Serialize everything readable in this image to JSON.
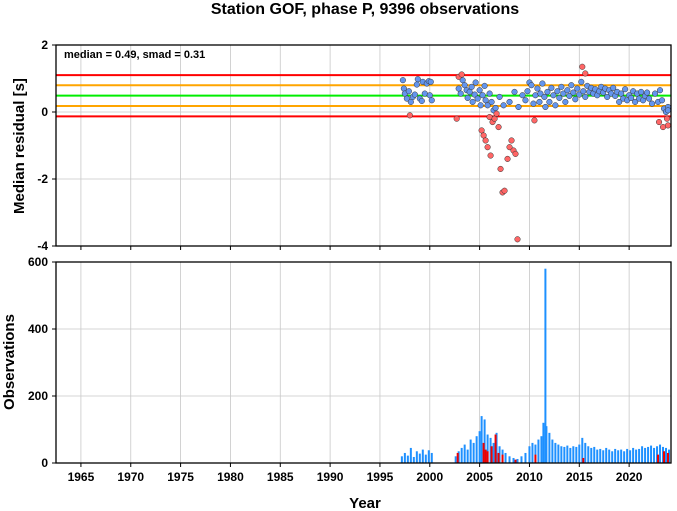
{
  "chart_data": [
    {
      "type": "scatter",
      "title": "Station GOF, phase P, 9396 observations",
      "ylabel": "Median residual [s]",
      "annotation": "median = 0.49, smad = 0.31",
      "xlim": [
        1962.5,
        2024.2
      ],
      "ylim": [
        -4,
        2
      ],
      "yticks": [
        "2",
        "0",
        "-2",
        "-4"
      ],
      "grid": true,
      "reference_lines": [
        {
          "y": 1.1,
          "color": "#ff0000"
        },
        {
          "y": 0.8,
          "color": "#ffa500"
        },
        {
          "y": 0.49,
          "color": "#00ee00"
        },
        {
          "y": 0.18,
          "color": "#ffa500"
        },
        {
          "y": -0.13,
          "color": "#ff0000"
        }
      ],
      "colors": {
        "in_band": "#6495ed",
        "outlier": "#ff6666"
      },
      "series": [
        {
          "color": "#6495ed",
          "points": [
            [
              1997.3,
              0.95
            ],
            [
              1997.4,
              0.7
            ],
            [
              1997.5,
              0.55
            ],
            [
              1997.7,
              0.4
            ],
            [
              1997.9,
              0.62
            ],
            [
              1998.1,
              0.3
            ],
            [
              1998.3,
              0.45
            ],
            [
              1998.5,
              0.52
            ],
            [
              1998.7,
              0.82
            ],
            [
              1998.8,
              0.98
            ],
            [
              1999.0,
              0.4
            ],
            [
              1999.2,
              0.33
            ],
            [
              1999.3,
              0.9
            ],
            [
              1999.5,
              0.55
            ],
            [
              1999.7,
              0.85
            ],
            [
              1999.9,
              0.92
            ],
            [
              2000.0,
              0.5
            ],
            [
              2000.1,
              0.9
            ],
            [
              2000.2,
              0.35
            ],
            [
              2002.9,
              0.7
            ],
            [
              2003.1,
              0.55
            ],
            [
              2003.3,
              0.95
            ],
            [
              2003.5,
              0.8
            ],
            [
              2003.7,
              0.65
            ],
            [
              2003.8,
              0.42
            ],
            [
              2004.0,
              0.6
            ],
            [
              2004.2,
              0.75
            ],
            [
              2004.3,
              0.3
            ],
            [
              2004.5,
              0.52
            ],
            [
              2004.6,
              0.88
            ],
            [
              2004.8,
              0.4
            ],
            [
              2005.0,
              0.65
            ],
            [
              2005.1,
              0.2
            ],
            [
              2005.3,
              0.5
            ],
            [
              2005.5,
              0.78
            ],
            [
              2005.6,
              0.35
            ],
            [
              2005.8,
              0.2
            ],
            [
              2006.0,
              0.55
            ],
            [
              2006.2,
              0.3
            ],
            [
              2006.4,
              0.05
            ],
            [
              2006.6,
              0.12
            ],
            [
              2007.0,
              0.45
            ],
            [
              2007.4,
              0.2
            ],
            [
              2008.0,
              0.3
            ],
            [
              2008.5,
              0.6
            ],
            [
              2008.9,
              0.15
            ],
            [
              2009.3,
              0.5
            ],
            [
              2009.6,
              0.35
            ],
            [
              2009.8,
              0.62
            ],
            [
              2010.0,
              0.88
            ],
            [
              2010.2,
              0.8
            ],
            [
              2010.4,
              0.25
            ],
            [
              2010.6,
              0.5
            ],
            [
              2010.8,
              0.7
            ],
            [
              2011.0,
              0.3
            ],
            [
              2011.1,
              0.55
            ],
            [
              2011.3,
              0.85
            ],
            [
              2011.5,
              0.45
            ],
            [
              2011.6,
              0.15
            ],
            [
              2011.8,
              0.6
            ],
            [
              2012.0,
              0.3
            ],
            [
              2012.2,
              0.72
            ],
            [
              2012.4,
              0.5
            ],
            [
              2012.6,
              0.2
            ],
            [
              2012.8,
              0.62
            ],
            [
              2013.0,
              0.42
            ],
            [
              2013.2,
              0.75
            ],
            [
              2013.4,
              0.55
            ],
            [
              2013.6,
              0.3
            ],
            [
              2013.8,
              0.65
            ],
            [
              2014.0,
              0.48
            ],
            [
              2014.2,
              0.8
            ],
            [
              2014.4,
              0.58
            ],
            [
              2014.6,
              0.38
            ],
            [
              2014.8,
              0.7
            ],
            [
              2015.0,
              0.52
            ],
            [
              2015.2,
              0.9
            ],
            [
              2015.4,
              0.62
            ],
            [
              2015.6,
              0.45
            ],
            [
              2015.8,
              0.78
            ],
            [
              2016.0,
              0.6
            ],
            [
              2016.2,
              0.72
            ],
            [
              2016.4,
              0.55
            ],
            [
              2016.6,
              0.68
            ],
            [
              2016.8,
              0.5
            ],
            [
              2017.0,
              0.62
            ],
            [
              2017.2,
              0.75
            ],
            [
              2017.4,
              0.58
            ],
            [
              2017.6,
              0.7
            ],
            [
              2017.8,
              0.45
            ],
            [
              2018.0,
              0.65
            ],
            [
              2018.2,
              0.55
            ],
            [
              2018.4,
              0.72
            ],
            [
              2018.6,
              0.48
            ],
            [
              2018.8,
              0.6
            ],
            [
              2019.0,
              0.3
            ],
            [
              2019.2,
              0.55
            ],
            [
              2019.4,
              0.4
            ],
            [
              2019.6,
              0.68
            ],
            [
              2019.8,
              0.35
            ],
            [
              2020.0,
              0.5
            ],
            [
              2020.2,
              0.42
            ],
            [
              2020.4,
              0.62
            ],
            [
              2020.6,
              0.3
            ],
            [
              2020.8,
              0.55
            ],
            [
              2021.0,
              0.4
            ],
            [
              2021.2,
              0.6
            ],
            [
              2021.4,
              0.35
            ],
            [
              2021.6,
              0.48
            ],
            [
              2021.8,
              0.58
            ],
            [
              2022.0,
              0.4
            ],
            [
              2022.3,
              0.25
            ],
            [
              2022.6,
              0.55
            ],
            [
              2022.9,
              0.3
            ],
            [
              2023.1,
              0.65
            ],
            [
              2023.3,
              0.35
            ],
            [
              2023.5,
              0.1
            ],
            [
              2023.7,
              0.0
            ],
            [
              2023.9,
              0.15
            ],
            [
              2024.0,
              0.05
            ]
          ]
        },
        {
          "color": "#ff6666",
          "points": [
            [
              1998.0,
              -0.1
            ],
            [
              2002.7,
              -0.2
            ],
            [
              2002.9,
              1.05
            ],
            [
              2003.2,
              1.12
            ],
            [
              2005.2,
              -0.55
            ],
            [
              2005.4,
              -0.7
            ],
            [
              2005.6,
              -0.85
            ],
            [
              2005.8,
              -1.05
            ],
            [
              2006.0,
              -0.15
            ],
            [
              2006.1,
              -1.3
            ],
            [
              2006.3,
              -0.3
            ],
            [
              2006.5,
              -0.2
            ],
            [
              2006.7,
              -0.05
            ],
            [
              2006.9,
              -0.45
            ],
            [
              2007.1,
              -1.7
            ],
            [
              2007.3,
              -2.4
            ],
            [
              2007.5,
              -2.35
            ],
            [
              2007.8,
              -1.4
            ],
            [
              2008.0,
              -1.05
            ],
            [
              2008.2,
              -0.85
            ],
            [
              2008.4,
              -1.15
            ],
            [
              2008.6,
              -1.25
            ],
            [
              2008.8,
              -3.8
            ],
            [
              2010.5,
              -0.25
            ],
            [
              2015.3,
              1.35
            ],
            [
              2015.6,
              1.15
            ],
            [
              2023.0,
              -0.3
            ],
            [
              2023.4,
              -0.45
            ],
            [
              2023.8,
              -0.2
            ],
            [
              2024.1,
              -0.4
            ]
          ]
        }
      ]
    },
    {
      "type": "bar",
      "ylabel": "Observations",
      "xlabel": "Year",
      "xlim": [
        1962.5,
        2024.2
      ],
      "ylim": [
        0,
        600
      ],
      "yticks": [
        "600",
        "400",
        "200",
        "0"
      ],
      "xticks": [
        "1965",
        "1970",
        "1975",
        "1980",
        "1985",
        "1990",
        "1995",
        "2000",
        "2005",
        "2010",
        "2015",
        "2020"
      ],
      "grid": true,
      "colors": {
        "in_band": "#1e90ff",
        "outlier": "#ee0000"
      },
      "series": [
        {
          "color": "#1e90ff",
          "points": [
            [
              1997.2,
              20
            ],
            [
              1997.5,
              30
            ],
            [
              1997.8,
              22
            ],
            [
              1998.1,
              45
            ],
            [
              1998.4,
              18
            ],
            [
              1998.7,
              35
            ],
            [
              1999.0,
              28
            ],
            [
              1999.3,
              40
            ],
            [
              1999.6,
              25
            ],
            [
              1999.9,
              38
            ],
            [
              2000.2,
              30
            ],
            [
              2002.6,
              20
            ],
            [
              2002.9,
              35
            ],
            [
              2003.2,
              45
            ],
            [
              2003.5,
              55
            ],
            [
              2003.8,
              40
            ],
            [
              2004.1,
              70
            ],
            [
              2004.4,
              60
            ],
            [
              2004.7,
              80
            ],
            [
              2005.0,
              95
            ],
            [
              2005.2,
              140
            ],
            [
              2005.5,
              130
            ],
            [
              2005.8,
              85
            ],
            [
              2006.1,
              75
            ],
            [
              2006.4,
              60
            ],
            [
              2006.7,
              90
            ],
            [
              2007.0,
              50
            ],
            [
              2007.3,
              40
            ],
            [
              2007.6,
              30
            ],
            [
              2008.0,
              20
            ],
            [
              2008.4,
              15
            ],
            [
              2008.8,
              12
            ],
            [
              2009.2,
              20
            ],
            [
              2009.6,
              30
            ],
            [
              2010.0,
              50
            ],
            [
              2010.3,
              60
            ],
            [
              2010.6,
              55
            ],
            [
              2010.9,
              70
            ],
            [
              2011.2,
              80
            ],
            [
              2011.4,
              120
            ],
            [
              2011.6,
              580
            ],
            [
              2011.7,
              110
            ],
            [
              2012.0,
              90
            ],
            [
              2012.3,
              70
            ],
            [
              2012.6,
              60
            ],
            [
              2012.9,
              55
            ],
            [
              2013.2,
              50
            ],
            [
              2013.5,
              48
            ],
            [
              2013.8,
              52
            ],
            [
              2014.1,
              45
            ],
            [
              2014.4,
              50
            ],
            [
              2014.7,
              48
            ],
            [
              2015.0,
              55
            ],
            [
              2015.3,
              75
            ],
            [
              2015.6,
              60
            ],
            [
              2015.9,
              50
            ],
            [
              2016.2,
              45
            ],
            [
              2016.5,
              48
            ],
            [
              2016.8,
              40
            ],
            [
              2017.1,
              42
            ],
            [
              2017.4,
              38
            ],
            [
              2017.7,
              45
            ],
            [
              2018.0,
              40
            ],
            [
              2018.3,
              35
            ],
            [
              2018.6,
              42
            ],
            [
              2018.9,
              38
            ],
            [
              2019.2,
              40
            ],
            [
              2019.5,
              35
            ],
            [
              2019.8,
              42
            ],
            [
              2020.1,
              38
            ],
            [
              2020.4,
              45
            ],
            [
              2020.7,
              40
            ],
            [
              2021.0,
              42
            ],
            [
              2021.3,
              50
            ],
            [
              2021.6,
              45
            ],
            [
              2021.9,
              48
            ],
            [
              2022.2,
              52
            ],
            [
              2022.5,
              45
            ],
            [
              2022.8,
              50
            ],
            [
              2023.1,
              55
            ],
            [
              2023.4,
              48
            ],
            [
              2023.7,
              45
            ],
            [
              2024.0,
              40
            ]
          ]
        },
        {
          "color": "#ee0000",
          "points": [
            [
              2002.8,
              30
            ],
            [
              2005.4,
              60
            ],
            [
              2005.6,
              40
            ],
            [
              2005.8,
              35
            ],
            [
              2006.2,
              50
            ],
            [
              2006.6,
              85
            ],
            [
              2006.9,
              30
            ],
            [
              2007.3,
              25
            ],
            [
              2008.6,
              10
            ],
            [
              2010.6,
              25
            ],
            [
              2015.4,
              15
            ],
            [
              2022.9,
              25
            ],
            [
              2023.5,
              35
            ],
            [
              2023.9,
              30
            ]
          ]
        }
      ]
    }
  ]
}
